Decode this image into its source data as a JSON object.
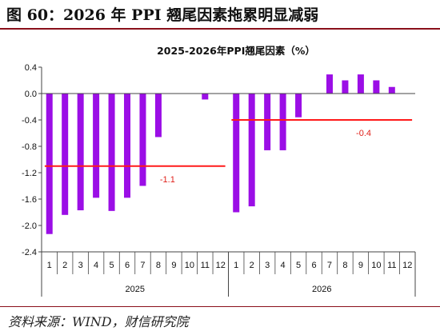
{
  "figure": {
    "title": "图 60：2026 年 PPI 翘尾因素拖累明显减弱",
    "source": "资料来源：WIND，财信研究院"
  },
  "chart_data": {
    "type": "bar",
    "title": "2025-2026年PPI翘尾因素（%）",
    "ylim": [
      -2.4,
      0.4
    ],
    "yticks": [
      "0.4",
      "0.0",
      "-0.4",
      "-0.8",
      "-1.2",
      "-1.6",
      "-2.0",
      "-2.4"
    ],
    "ytick_values": [
      0.4,
      0.0,
      -0.4,
      -0.8,
      -1.2,
      -1.6,
      -2.0,
      -2.4
    ],
    "groups": [
      {
        "label": "2025",
        "categories": [
          "1",
          "2",
          "3",
          "4",
          "5",
          "6",
          "7",
          "8",
          "9",
          "10",
          "11",
          "12"
        ],
        "values": [
          -2.13,
          -1.84,
          -1.77,
          -1.58,
          -1.78,
          -1.58,
          -1.4,
          -0.66,
          0,
          0,
          -0.09,
          0
        ]
      },
      {
        "label": "2026",
        "categories": [
          "1",
          "2",
          "3",
          "4",
          "5",
          "6",
          "7",
          "8",
          "9",
          "10",
          "11",
          "12"
        ],
        "values": [
          -1.8,
          -1.71,
          -0.86,
          -0.86,
          -0.36,
          0,
          0.29,
          0.2,
          0.29,
          0.2,
          0.1,
          0
        ]
      }
    ],
    "reference_lines": [
      {
        "group": 0,
        "value": -1.1,
        "label": "-1.1"
      },
      {
        "group": 1,
        "value": -0.4,
        "label": "-0.4"
      }
    ],
    "colors": {
      "bar": "#9b0ee6",
      "reference": "#ff1a1a",
      "axis": "#444444"
    },
    "grid": false,
    "legend": "none"
  }
}
